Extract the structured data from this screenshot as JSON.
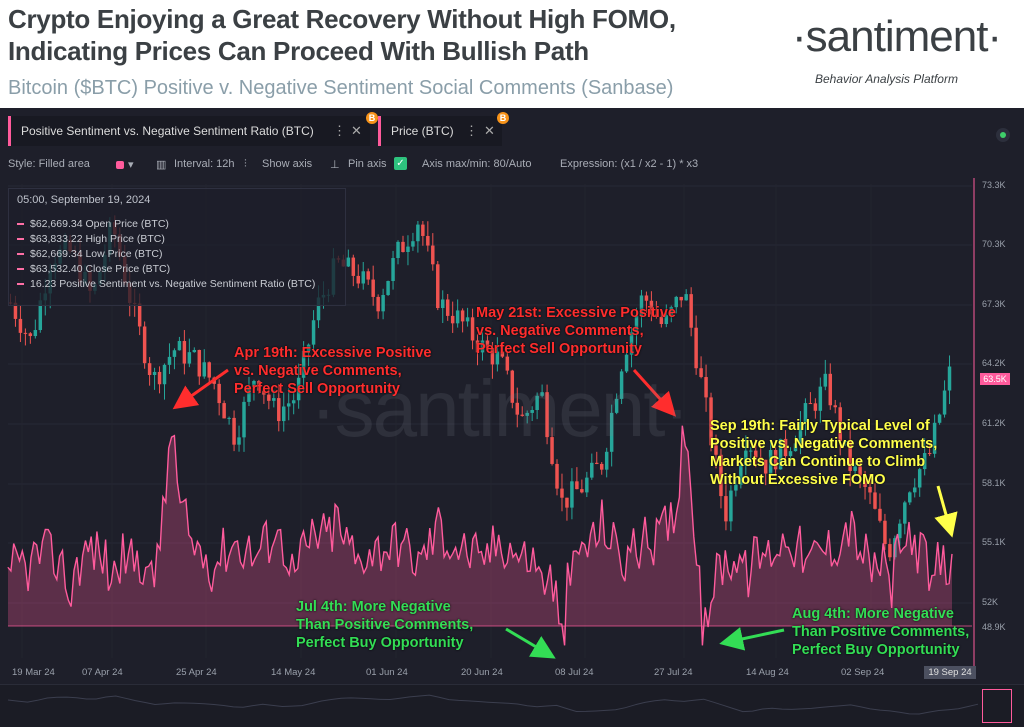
{
  "header": {
    "title_line1": "Crypto Enjoying a Great Recovery Without High FOMO,",
    "title_line2": "Indicating Prices Can Proceed With Bullish Path",
    "subtitle": "Bitcoin ($BTC) Positive v. Negative Sentiment Social Comments (Sanbase)",
    "brand": "·santiment·",
    "tagline": "Behavior Analysis Platform"
  },
  "tabs": [
    {
      "label": "Positive Sentiment vs. Negative Sentiment Ratio (BTC)",
      "badge": "B"
    },
    {
      "label": "Price (BTC)",
      "badge": "B"
    }
  ],
  "toolbar": {
    "style": "Style: Filled area",
    "interval": "Interval: 12h",
    "show_axis": "Show axis",
    "pin_axis": "Pin axis",
    "axis_maxmin": "Axis max/min: 80/Auto",
    "expression": "Expression: (x1 / x2 - 1) * x3"
  },
  "info": {
    "timestamp": "05:00, September 19, 2024",
    "rows": [
      "$62,669.34 Open Price (BTC)",
      "$63,833.22 High Price (BTC)",
      "$62,669.34 Low Price (BTC)",
      "$63,532.40 Close Price (BTC)",
      "16.23 Positive Sentiment vs. Negative Sentiment Ratio (BTC)"
    ]
  },
  "annotations": {
    "apr19": [
      "Apr 19th: Excessive Positive",
      "vs. Negative Comments,",
      "Perfect Sell Opportunity"
    ],
    "may21": [
      "May 21st: Excessive Positive",
      "vs. Negative Comments,",
      "Perfect Sell Opportunity"
    ],
    "sep19": [
      "Sep 19th: Fairly Typical Level of",
      "Positive vs. Negative Comments,",
      "Markets Can Continue to Climb",
      "Without Excessive FOMO"
    ],
    "jul4": [
      "Jul 4th: More Negative",
      "Than Positive Comments,",
      "Perfect Buy Opportunity"
    ],
    "aug4": [
      "Aug 4th: More Negative",
      "Than Positive Comments,",
      "Perfect Buy Opportunity"
    ]
  },
  "watermark": "·santiment·",
  "current_price_tag": "63.5K",
  "current_date_tag": "19 Sep 24",
  "colors": {
    "price_up": "#26a69a",
    "price_down": "#ef5350",
    "sentiment": "#ff5b9c",
    "background": "#1e1f2a"
  },
  "chart_data": {
    "type": "line",
    "title": "Bitcoin ($BTC) Positive v. Negative Sentiment Social Comments (Sanbase)",
    "y_ticks": [
      "73.3K",
      "70.3K",
      "67.3K",
      "64.2K",
      "61.2K",
      "58.1K",
      "55.1K",
      "52K",
      "48.9K"
    ],
    "x_ticks": [
      "19 Mar 24",
      "07 Apr 24",
      "25 Apr 24",
      "14 May 24",
      "01 Jun 24",
      "20 Jun 24",
      "08 Jul 24",
      "27 Jul 24",
      "14 Aug 24",
      "02 Sep 24",
      "19 Sep 24"
    ],
    "ylim": [
      48900,
      73300
    ],
    "series": [
      {
        "name": "Price (BTC)",
        "type": "candlestick",
        "x": [
          "19 Mar",
          "23 Mar",
          "27 Mar",
          "31 Mar",
          "04 Apr",
          "08 Apr",
          "12 Apr",
          "16 Apr",
          "20 Apr",
          "24 Apr",
          "28 Apr",
          "02 May",
          "06 May",
          "10 May",
          "14 May",
          "18 May",
          "22 May",
          "26 May",
          "30 May",
          "03 Jun",
          "07 Jun",
          "11 Jun",
          "15 Jun",
          "19 Jun",
          "23 Jun",
          "27 Jun",
          "01 Jul",
          "05 Jul",
          "09 Jul",
          "13 Jul",
          "17 Jul",
          "21 Jul",
          "25 Jul",
          "29 Jul",
          "02 Aug",
          "06 Aug",
          "10 Aug",
          "14 Aug",
          "18 Aug",
          "22 Aug",
          "26 Aug",
          "30 Aug",
          "03 Sep",
          "07 Sep",
          "11 Sep",
          "15 Sep",
          "19 Sep"
        ],
        "values": [
          67200,
          65200,
          69600,
          69800,
          67400,
          71200,
          66800,
          63200,
          64800,
          64300,
          63000,
          60300,
          63600,
          61500,
          62400,
          66900,
          69200,
          68600,
          67300,
          69800,
          71500,
          67200,
          66300,
          65000,
          64200,
          61100,
          62600,
          56900,
          57700,
          59000,
          64500,
          67600,
          65900,
          67900,
          62100,
          56200,
          60300,
          58900,
          59700,
          61500,
          63000,
          59000,
          57400,
          54300,
          57800,
          59300,
          63500
        ]
      },
      {
        "name": "Positive Sentiment vs. Negative Sentiment Ratio (BTC)",
        "type": "area",
        "x": [
          "19 Mar",
          "23 Mar",
          "27 Mar",
          "31 Mar",
          "04 Apr",
          "08 Apr",
          "12 Apr",
          "16 Apr",
          "19 Apr",
          "24 Apr",
          "28 Apr",
          "02 May",
          "06 May",
          "10 May",
          "14 May",
          "18 May",
          "21 May",
          "26 May",
          "30 May",
          "03 Jun",
          "07 Jun",
          "11 Jun",
          "15 Jun",
          "19 Jun",
          "23 Jun",
          "27 Jun",
          "01 Jul",
          "04 Jul",
          "09 Jul",
          "13 Jul",
          "17 Jul",
          "21 Jul",
          "25 Jul",
          "29 Jul",
          "04 Aug",
          "06 Aug",
          "10 Aug",
          "14 Aug",
          "18 Aug",
          "22 Aug",
          "26 Aug",
          "30 Aug",
          "03 Sep",
          "07 Sep",
          "11 Sep",
          "15 Sep",
          "19 Sep"
        ],
        "values": [
          12,
          18,
          22,
          9,
          24,
          16,
          20,
          14,
          58,
          25,
          18,
          26,
          22,
          30,
          17,
          28,
          33,
          20,
          24,
          26,
          19,
          31,
          24,
          18,
          27,
          21,
          15,
          -4,
          24,
          32,
          20,
          26,
          30,
          62,
          -2,
          20,
          16,
          22,
          28,
          19,
          24,
          31,
          17,
          12,
          29,
          13,
          16
        ]
      }
    ]
  }
}
